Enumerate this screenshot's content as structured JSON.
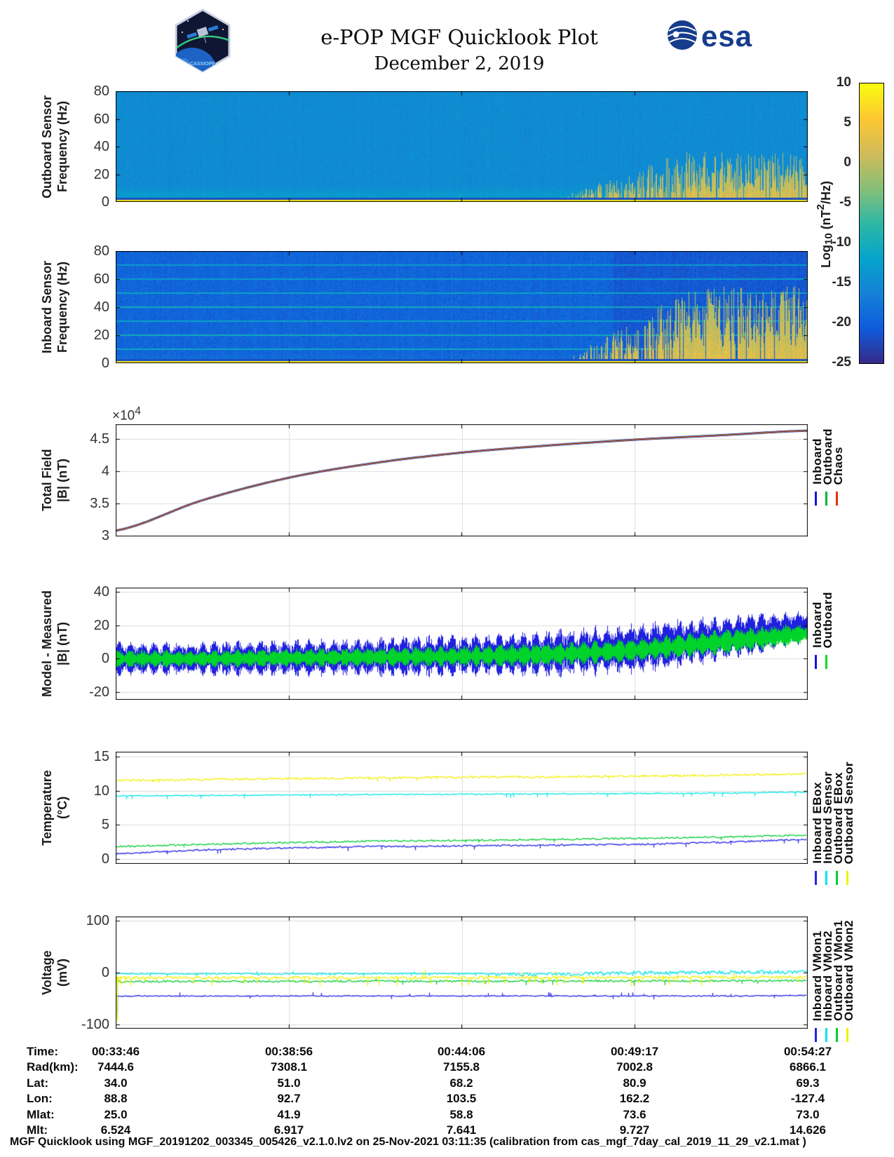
{
  "header": {
    "badge_text": "CASSIOPE",
    "title": "e-POP MGF Quicklook Plot",
    "date": "December 2, 2019",
    "esa_text": "esa",
    "esa_blue": "#163c8c"
  },
  "colorbar": {
    "label_parts": {
      "main": "Log",
      "sub": "10",
      "mid": " (nT",
      "sup": "2",
      "end": "/Hz)"
    },
    "tick_labels": [
      "10",
      "5",
      "0",
      "-5",
      "-10",
      "-15",
      "-20",
      "-25"
    ],
    "tick_values": [
      10,
      5,
      0,
      -5,
      -10,
      -15,
      -20,
      -25
    ],
    "ylim": [
      -25,
      10
    ],
    "colormap": [
      "#352a87",
      "#0f5cdd",
      "#1481d6",
      "#06a4ca",
      "#2eb7a4",
      "#87bf77",
      "#d1bb59",
      "#fdc832",
      "#f9fb0e"
    ]
  },
  "chart_data": [
    {
      "id": "outboard-spectrogram",
      "type": "heatmap",
      "ylabel_lines": [
        "Outboard Sensor",
        "Frequency (Hz)"
      ],
      "yticks": [
        0,
        20,
        40,
        60,
        80
      ],
      "ytick_labels": [
        "0",
        "20",
        "40",
        "60",
        "80"
      ],
      "ylim": [
        0,
        80
      ],
      "time_range": [
        "00:33:46",
        "00:54:27"
      ],
      "background_log_power": -15,
      "noise_sigma": 1.3,
      "column_noise_sigma": 0.4,
      "low_freq_boost": 3,
      "low_freq_boost_below_hz": 12,
      "bottom_band": {
        "below_hz": 1.6,
        "log_power": 8,
        "dark_line_below_hz": 3.2
      },
      "burst_region": {
        "t_start": 0.64,
        "max_freq_hz": 36,
        "peak_log_power": 6
      }
    },
    {
      "id": "inboard-spectrogram",
      "type": "heatmap",
      "ylabel_lines": [
        "Inboard Sensor",
        "Frequency (Hz)"
      ],
      "yticks": [
        0,
        20,
        40,
        60,
        80
      ],
      "ytick_labels": [
        "0",
        "20",
        "40",
        "60",
        "80"
      ],
      "ylim": [
        0,
        80
      ],
      "background_log_power": -19.5,
      "noise_sigma": 1.8,
      "column_noise_sigma": 0.6,
      "low_freq_boost": 1.5,
      "low_freq_boost_below_hz": 8,
      "bottom_band": {
        "below_hz": 1.6,
        "log_power": 8,
        "dark_line_below_hz": 3.2
      },
      "interference_lines": [
        {
          "hz": 10,
          "log_power": -11
        },
        {
          "hz": 20,
          "log_power": -10.5
        },
        {
          "hz": 30,
          "log_power": -12
        },
        {
          "hz": 40,
          "log_power": -10.5
        },
        {
          "hz": 50,
          "log_power": -12
        },
        {
          "hz": 60,
          "log_power": -12.5
        },
        {
          "hz": 70,
          "log_power": -13
        }
      ],
      "right_dim": {
        "t_start": 0.72,
        "delta": -1.3
      },
      "burst_region": {
        "t_start": 0.66,
        "max_freq_hz": 55,
        "peak_log_power": 6
      }
    },
    {
      "id": "total-field",
      "type": "line",
      "ylabel_lines": [
        "Total Field",
        "|B| (nT)"
      ],
      "scale_label": {
        "prefix": "×10",
        "exp": "4"
      },
      "yticks": [
        30000,
        35000,
        40000,
        45000
      ],
      "ytick_labels": [
        "3",
        "3.5",
        "4",
        "4.5"
      ],
      "ylim": [
        29900,
        47300
      ],
      "series": [
        {
          "name": "Inboard",
          "color": "#1414e6",
          "width": 3,
          "values": [
            30800,
            35500,
            39000,
            41300,
            42900,
            44000,
            44900,
            45600,
            46300
          ]
        },
        {
          "name": "Outboard",
          "color": "#00b33c",
          "width": 2,
          "values": [
            30800,
            35500,
            39000,
            41300,
            42900,
            44000,
            44900,
            45600,
            46300
          ]
        },
        {
          "name": "Chaos",
          "color": "#e62e14",
          "width": 1.3,
          "values": [
            30800,
            35500,
            39000,
            41300,
            42900,
            44000,
            44900,
            45600,
            46300
          ]
        }
      ],
      "legend": [
        {
          "label": "Inboard",
          "color": "#1414e6"
        },
        {
          "label": "Outboard",
          "color": "#00b33c"
        },
        {
          "label": "Chaos",
          "color": "#e62e14"
        }
      ]
    },
    {
      "id": "model-minus-measured",
      "type": "band",
      "ylabel_lines": [
        "Model - Measured",
        "|B| (nT)"
      ],
      "yticks": [
        -20,
        0,
        20,
        40
      ],
      "ytick_labels": [
        "-20",
        "0",
        "20",
        "40"
      ],
      "ylim": [
        -24.5,
        42.5
      ],
      "series": [
        {
          "name": "Inboard",
          "color": "#1414dd",
          "center": [
            0,
            0,
            0.5,
            1,
            2,
            3,
            6,
            12,
            19
          ],
          "amp": [
            8,
            8,
            9,
            9,
            10,
            11,
            12,
            11,
            8
          ]
        },
        {
          "name": "Outboard",
          "color": "#00dd22",
          "center": [
            0,
            0,
            0.5,
            1,
            1.5,
            2.5,
            5,
            10,
            15
          ],
          "amp": [
            4.5,
            4,
            4.5,
            4.5,
            5,
            5.5,
            5.5,
            6,
            5
          ]
        }
      ],
      "legend": [
        {
          "label": "Inboard",
          "color": "#1414dd"
        },
        {
          "label": "Outboard",
          "color": "#00dd22"
        }
      ]
    },
    {
      "id": "temperature",
      "type": "noisy-line",
      "ylabel_lines": [
        "Temperature",
        "(°C)"
      ],
      "yticks": [
        0,
        5,
        10,
        15
      ],
      "ytick_labels": [
        "0",
        "5",
        "10",
        "15"
      ],
      "ylim": [
        -0.75,
        15.75
      ],
      "series": [
        {
          "name": "Inboard EBox",
          "color": "#2424e6",
          "base": [
            0.7,
            1.3,
            1.6,
            1.8,
            1.9,
            2.0,
            2.1,
            2.4,
            2.9
          ],
          "noise": 0.12,
          "dips": {
            "rate": 0.03,
            "mag": 0.5
          }
        },
        {
          "name": "Inboard Sensor",
          "color": "#00e6e6",
          "base": [
            9.25,
            9.3,
            9.4,
            9.45,
            9.5,
            9.55,
            9.6,
            9.65,
            9.8
          ],
          "noise": 0.08,
          "dips": {
            "rate": 0.04,
            "mag": 0.5
          }
        },
        {
          "name": "Outboard EBox",
          "color": "#00cc33",
          "base": [
            1.8,
            2.1,
            2.4,
            2.6,
            2.7,
            2.85,
            3.0,
            3.2,
            3.5
          ],
          "noise": 0.12,
          "dips": {
            "rate": 0.02,
            "mag": 0.4
          }
        },
        {
          "name": "Outboard Sensor",
          "color": "#f0f000",
          "base": [
            11.5,
            11.65,
            11.8,
            11.9,
            12.0,
            12.05,
            12.15,
            12.3,
            12.5
          ],
          "noise": 0.15,
          "dips": {
            "rate": 0.02,
            "mag": 0.4
          }
        }
      ],
      "legend": [
        {
          "label": "Inboard EBox",
          "color": "#2424e6"
        },
        {
          "label": "Inboard Sensor",
          "color": "#00e6e6"
        },
        {
          "label": "Outboard EBox",
          "color": "#00cc33"
        },
        {
          "label": "Outboard Sensor",
          "color": "#f0f000"
        }
      ]
    },
    {
      "id": "voltage",
      "type": "noisy-line",
      "ylabel_lines": [
        "Voltage",
        "(mV)"
      ],
      "yticks": [
        -100,
        0,
        100
      ],
      "ytick_labels": [
        "-100",
        "0",
        "100"
      ],
      "ylim": [
        -108,
        108
      ],
      "draw_order": [
        0,
        2,
        3,
        1
      ],
      "series": [
        {
          "name": "Inboard VMon1",
          "color": "#2424e6",
          "base": [
            -45,
            -45,
            -45,
            -45,
            -45,
            -45,
            -45,
            -45,
            -44
          ],
          "noise": 1.0,
          "spikes": {
            "rate": 0.05,
            "mag": 7,
            "dir": 1
          },
          "initial_dip": -78
        },
        {
          "name": "Inboard VMon2",
          "color": "#00e6e6",
          "base": [
            -2,
            -2.5,
            -2.5,
            -2,
            -2,
            -1.5,
            1.5,
            2.5,
            3
          ],
          "noise": 1.2,
          "spikes": {
            "rate": 0.06,
            "mag": 5,
            "dir": -1
          },
          "two_level": {
            "t_start": 0.55,
            "offset": -4,
            "rate": 0.45
          }
        },
        {
          "name": "Outboard VMon1",
          "color": "#00cc33",
          "base": [
            -17,
            -17,
            -17,
            -16.5,
            -16.5,
            -16,
            -16,
            -16,
            -15.5
          ],
          "noise": 1.8,
          "spikes": {
            "rate": 0.04,
            "mag": 8,
            "dir": -1
          },
          "initial_dip": -90
        },
        {
          "name": "Outboard VMon2",
          "color": "#f0f000",
          "base": [
            -10,
            -10,
            -10,
            -10,
            -9.5,
            -9.5,
            -9,
            -9,
            -8.5
          ],
          "noise": 2.6,
          "spikes": {
            "rate": 0.13,
            "mag": 16,
            "dir": -1
          },
          "initial_dip": -95
        }
      ],
      "legend": [
        {
          "label": "Inboard VMon1",
          "color": "#2424e6"
        },
        {
          "label": "Inboard VMon2",
          "color": "#00e6e6"
        },
        {
          "label": "Outboard VMon1",
          "color": "#00cc33"
        },
        {
          "label": "Outboard VMon2",
          "color": "#f0f000"
        }
      ]
    }
  ],
  "table": {
    "rows": [
      {
        "label": "Time:",
        "values": [
          "00:33:46",
          "00:38:56",
          "00:44:06",
          "00:49:17",
          "00:54:27"
        ]
      },
      {
        "label": "Rad(km):",
        "values": [
          "7444.6",
          "7308.1",
          "7155.8",
          "7002.8",
          "6866.1"
        ]
      },
      {
        "label": "Lat:",
        "values": [
          "34.0",
          "51.0",
          "68.2",
          "80.9",
          "69.3"
        ]
      },
      {
        "label": "Lon:",
        "values": [
          "88.8",
          "92.7",
          "103.5",
          "162.2",
          "-127.4"
        ]
      },
      {
        "label": "Mlat:",
        "values": [
          "25.0",
          "41.9",
          "58.8",
          "73.6",
          "73.0"
        ]
      },
      {
        "label": "Mlt:",
        "values": [
          "6.524",
          "6.917",
          "7.641",
          "9.727",
          "14.626"
        ]
      }
    ]
  },
  "footer": {
    "text": "MGF Quicklook using MGF_20191202_003345_005426_v2.1.0.lv2 on 25-Nov-2021 03:11:35 (calibration from cas_mgf_7day_cal_2019_11_29_v2.1.mat )"
  }
}
